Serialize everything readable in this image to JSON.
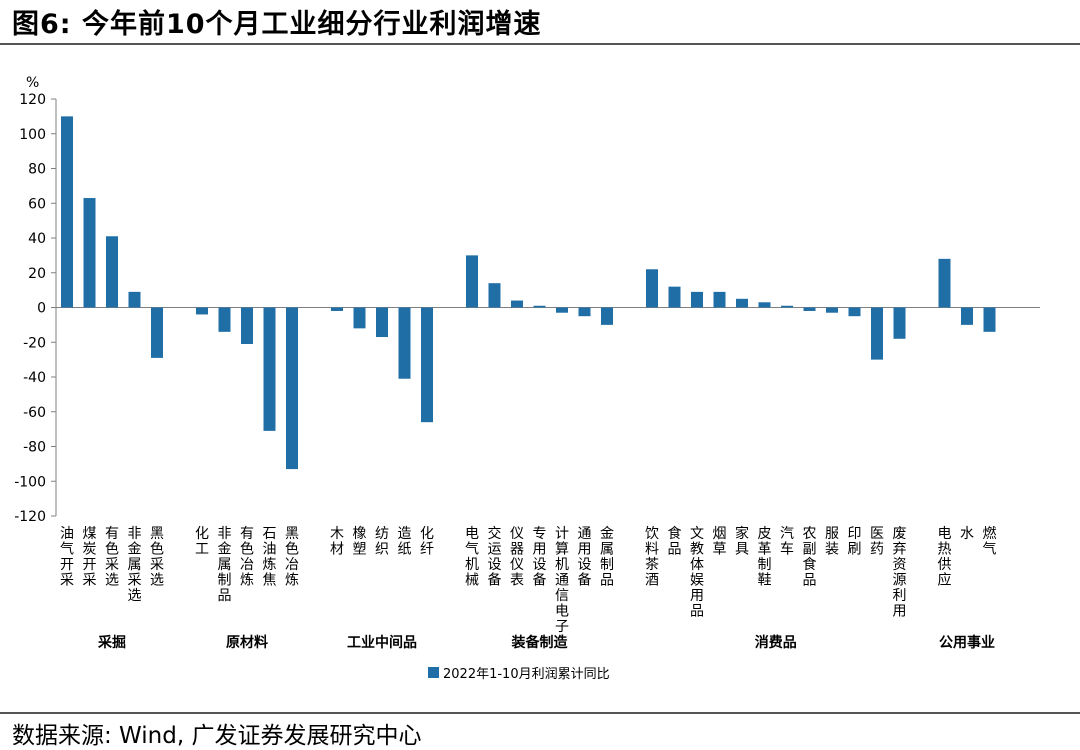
{
  "title": "图6:  今年前10个月工业细分行业利润增速",
  "source": "数据来源: Wind, 广发证券发展研究中心",
  "colors": {
    "bar": "#1f6ea6",
    "axis": "#808080"
  },
  "chart_data": {
    "type": "bar",
    "ylabel": "%",
    "ylim": [
      -120,
      120
    ],
    "yticks": [
      120,
      100,
      80,
      60,
      40,
      20,
      0,
      -20,
      -40,
      -60,
      -80,
      -100,
      -120
    ],
    "legend": "2022年1-10月利润累计同比",
    "groups": [
      {
        "name": "采掘",
        "categories": [
          "油气开采",
          "煤炭开采",
          "有色采选",
          "非金属采选",
          "黑色采选"
        ],
        "values": [
          110,
          63,
          41,
          9,
          -29
        ]
      },
      {
        "name": "原材料",
        "categories": [
          "化工",
          "非金属制品",
          "有色冶炼",
          "石油炼焦",
          "黑色冶炼"
        ],
        "values": [
          -4,
          -14,
          -21,
          -71,
          -93
        ]
      },
      {
        "name": "工业中间品",
        "categories": [
          "木材",
          "橡塑",
          "纺织",
          "造纸",
          "化纤"
        ],
        "values": [
          -2,
          -12,
          -17,
          -41,
          -66
        ]
      },
      {
        "name": "装备制造",
        "categories": [
          "电气机械",
          "交运设备",
          "仪器仪表",
          "专用设备",
          "计算机通信电子",
          "通用设备",
          "金属制品"
        ],
        "values": [
          30,
          14,
          4,
          1,
          -3,
          -5,
          -10
        ]
      },
      {
        "name": "消费品",
        "categories": [
          "饮料茶酒",
          "食品",
          "文教体娱用品",
          "烟草",
          "家具",
          "皮革制鞋",
          "汽车",
          "农副食品",
          "服装",
          "印刷",
          "医药",
          "废弃资源利用"
        ],
        "values": [
          22,
          12,
          9,
          9,
          5,
          3,
          1,
          -2,
          -3,
          -5,
          -30,
          -18
        ]
      },
      {
        "name": "公用事业",
        "categories": [
          "电热供应",
          "水",
          "燃气"
        ],
        "values": [
          28,
          -10,
          -14
        ]
      }
    ]
  }
}
